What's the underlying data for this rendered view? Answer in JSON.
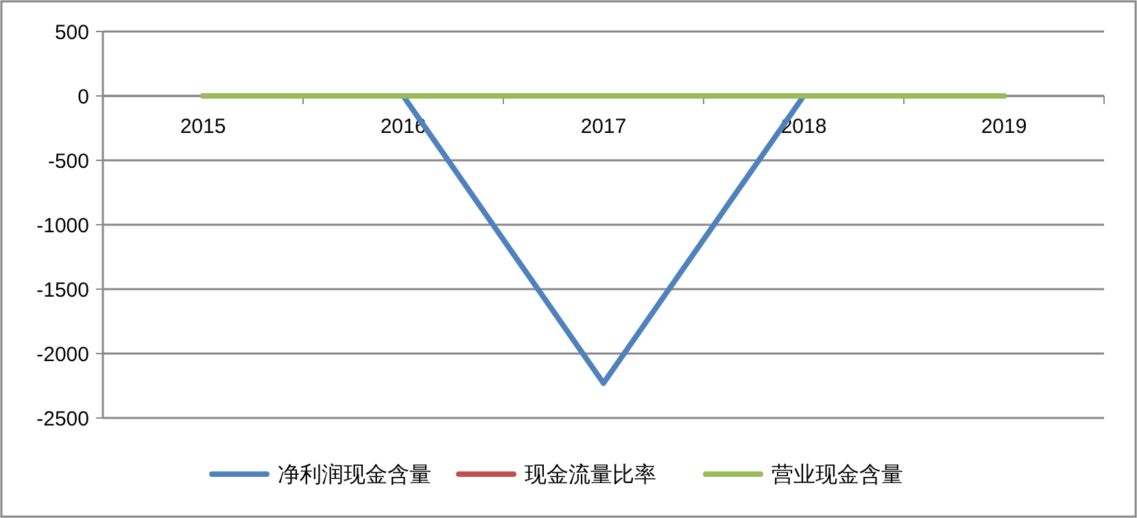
{
  "chart_data": {
    "type": "line",
    "categories": [
      "2015",
      "2016",
      "2017",
      "2018",
      "2019"
    ],
    "series": [
      {
        "name": "净利润现金含量",
        "color": "#4f81bd",
        "values": [
          0,
          0,
          -2230,
          0,
          0
        ]
      },
      {
        "name": "现金流量比率",
        "color": "#c0504d",
        "values": [
          null,
          null,
          null,
          null,
          null
        ]
      },
      {
        "name": "营业现金含量",
        "color": "#9bbb59",
        "values": [
          0,
          0,
          0,
          0,
          0
        ]
      }
    ],
    "ylim": [
      -2500,
      500
    ],
    "yticks": [
      -2500,
      -2000,
      -1500,
      -1000,
      -500,
      0,
      500
    ],
    "grid": "y",
    "legend": "bottom",
    "marker": "none",
    "line_style": "solid"
  }
}
